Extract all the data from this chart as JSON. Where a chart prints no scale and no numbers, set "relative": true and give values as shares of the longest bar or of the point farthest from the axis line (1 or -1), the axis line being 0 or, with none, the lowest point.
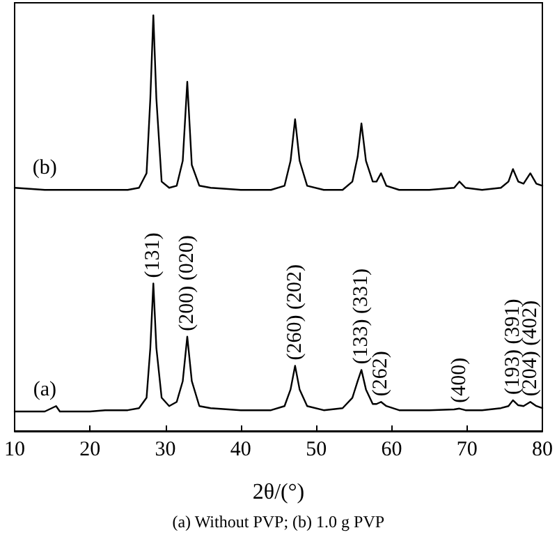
{
  "chart_data": {
    "type": "line",
    "relative": true,
    "xlabel": "2θ/(°)",
    "xlim": [
      10,
      80
    ],
    "xticks": [
      10,
      20,
      30,
      40,
      50,
      60,
      70,
      80
    ],
    "grid": false,
    "marker": "none",
    "line_style": "solid",
    "x": [
      10,
      14,
      15.5,
      16,
      20,
      22,
      25,
      26.5,
      27.5,
      28,
      28.4,
      28.8,
      29.5,
      30.5,
      31.5,
      32.3,
      32.9,
      33.5,
      34.5,
      36,
      40,
      44,
      45.8,
      46.6,
      47.2,
      47.8,
      48.8,
      51,
      53.5,
      54.8,
      55.5,
      56,
      56.6,
      57.5,
      58,
      58.6,
      59.3,
      61,
      65,
      68.3,
      69,
      69.8,
      72,
      74.5,
      75.5,
      76.1,
      76.8,
      77.5,
      78.4,
      79.2,
      80
    ],
    "series": [
      {
        "name": "(b)",
        "color": "#000000",
        "values": [
          0.585,
          0.58,
          0.58,
          0.58,
          0.58,
          0.58,
          0.58,
          0.585,
          0.62,
          0.8,
          1.0,
          0.8,
          0.6,
          0.585,
          0.59,
          0.65,
          0.84,
          0.64,
          0.59,
          0.585,
          0.58,
          0.58,
          0.59,
          0.65,
          0.75,
          0.65,
          0.59,
          0.58,
          0.58,
          0.6,
          0.66,
          0.74,
          0.65,
          0.6,
          0.6,
          0.62,
          0.59,
          0.58,
          0.58,
          0.585,
          0.6,
          0.585,
          0.58,
          0.585,
          0.6,
          0.63,
          0.6,
          0.595,
          0.62,
          0.595,
          0.59
        ]
      },
      {
        "name": "(a)",
        "color": "#000000",
        "values": [
          0.047,
          0.047,
          0.06,
          0.047,
          0.047,
          0.05,
          0.05,
          0.055,
          0.08,
          0.2,
          0.355,
          0.2,
          0.08,
          0.06,
          0.07,
          0.12,
          0.227,
          0.12,
          0.06,
          0.055,
          0.05,
          0.05,
          0.06,
          0.1,
          0.157,
          0.1,
          0.06,
          0.05,
          0.055,
          0.08,
          0.12,
          0.147,
          0.1,
          0.065,
          0.065,
          0.07,
          0.06,
          0.05,
          0.05,
          0.052,
          0.054,
          0.05,
          0.05,
          0.055,
          0.06,
          0.074,
          0.062,
          0.06,
          0.07,
          0.06,
          0.055
        ]
      }
    ],
    "annotations": [
      {
        "text": "(131)",
        "x": 28.4,
        "y": 0.355
      },
      {
        "text": "(200) (020)",
        "x": 32.9,
        "y": 0.227
      },
      {
        "text": "(260) (202)",
        "x": 47.2,
        "y": 0.157
      },
      {
        "text": "(133) (331)",
        "x": 56,
        "y": 0.147
      },
      {
        "text": "(262)",
        "x": 58.6,
        "y": 0.07
      },
      {
        "text": "(400)",
        "x": 69,
        "y": 0.054
      },
      {
        "text": "(193) (391)",
        "x": 76.1,
        "y": 0.074
      },
      {
        "text": "(204) (402)",
        "x": 78.4,
        "y": 0.07
      },
      "(a) Without PVP; (b) 1.0 g PVP"
    ]
  }
}
